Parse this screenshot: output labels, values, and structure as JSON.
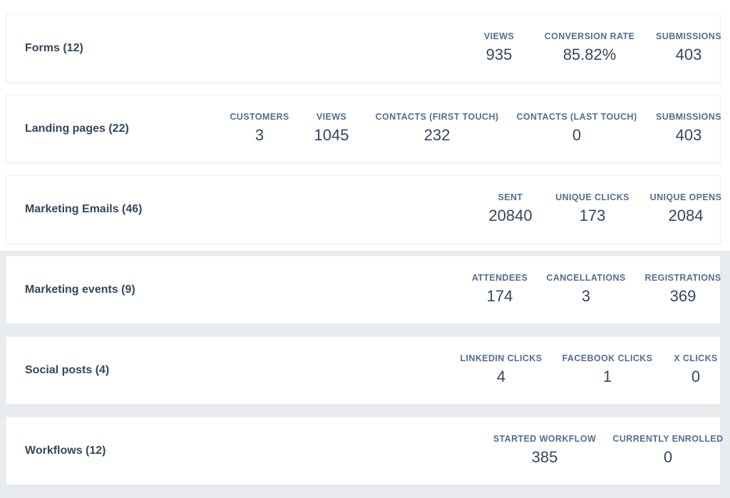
{
  "cards": [
    {
      "title": "Forms (12)",
      "metrics": [
        {
          "label": "VIEWS",
          "value": "935"
        },
        {
          "label": "CONVERSION RATE",
          "value": "85.82%"
        },
        {
          "label": "SUBMISSIONS",
          "value": "403"
        }
      ]
    },
    {
      "title": "Landing pages (22)",
      "metrics": [
        {
          "label": "CUSTOMERS",
          "value": "3"
        },
        {
          "label": "VIEWS",
          "value": "1045"
        },
        {
          "label": "CONTACTS (FIRST TOUCH)",
          "value": "232"
        },
        {
          "label": "CONTACTS (LAST TOUCH)",
          "value": "0"
        },
        {
          "label": "SUBMISSIONS",
          "value": "403"
        }
      ]
    },
    {
      "title": "Marketing Emails (46)",
      "metrics": [
        {
          "label": "SENT",
          "value": "20840"
        },
        {
          "label": "UNIQUE CLICKS",
          "value": "173"
        },
        {
          "label": "UNIQUE OPENS",
          "value": "2084"
        }
      ]
    },
    {
      "title": "Marketing events (9)",
      "metrics": [
        {
          "label": "ATTENDEES",
          "value": "174"
        },
        {
          "label": "CANCELLATIONS",
          "value": "3"
        },
        {
          "label": "REGISTRATIONS",
          "value": "369"
        }
      ]
    },
    {
      "title": "Social posts (4)",
      "metrics": [
        {
          "label": "LINKEDIN CLICKS",
          "value": "4"
        },
        {
          "label": "FACEBOOK CLICKS",
          "value": "1"
        },
        {
          "label": "X CLICKS",
          "value": "0"
        }
      ]
    },
    {
      "title": "Workflows (12)",
      "metrics": [
        {
          "label": "STARTED WORKFLOW",
          "value": "385"
        },
        {
          "label": "CURRENTLY ENROLLED",
          "value": "0"
        }
      ]
    }
  ]
}
